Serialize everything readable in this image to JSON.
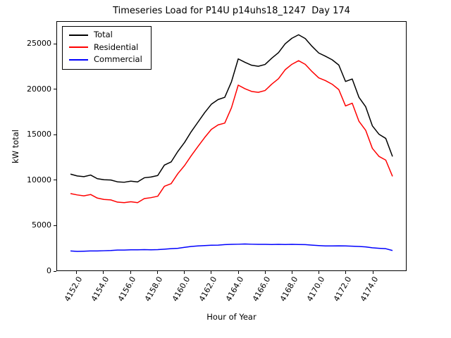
{
  "chart_data": {
    "type": "line",
    "title": "Timeseries Load for P14U p14uhs18_1247  Day 174",
    "xlabel": "Hour of Year",
    "ylabel": "kW total",
    "xlim": [
      4150.5,
      4176.5
    ],
    "ylim": [
      0,
      27500
    ],
    "grid": false,
    "legend_position": "upper left",
    "xticks": [
      4152,
      4154,
      4156,
      4158,
      4160,
      4162,
      4164,
      4166,
      4168,
      4170,
      4172,
      4174
    ],
    "xtick_labels": [
      "4152.0",
      "4154.0",
      "4156.0",
      "4158.0",
      "4160.0",
      "4162.0",
      "4164.0",
      "4166.0",
      "4168.0",
      "4170.0",
      "4172.0",
      "4174.0"
    ],
    "yticks": [
      0,
      5000,
      10000,
      15000,
      20000,
      25000
    ],
    "ytick_labels": [
      "0",
      "5000",
      "10000",
      "15000",
      "20000",
      "25000"
    ],
    "x": [
      4151.5,
      4152.0,
      4152.5,
      4153.0,
      4153.5,
      4154.0,
      4154.5,
      4155.0,
      4155.5,
      4156.0,
      4156.5,
      4157.0,
      4157.5,
      4158.0,
      4158.5,
      4159.0,
      4159.5,
      4160.0,
      4160.5,
      4161.0,
      4161.5,
      4162.0,
      4162.5,
      4163.0,
      4163.5,
      4164.0,
      4164.5,
      4165.0,
      4165.5,
      4166.0,
      4166.5,
      4167.0,
      4167.5,
      4168.0,
      4168.5,
      4169.0,
      4169.5,
      4170.0,
      4170.5,
      4171.0,
      4171.5,
      4172.0,
      4172.5,
      4173.0,
      4173.5,
      4174.0,
      4174.5,
      4175.0,
      4175.5
    ],
    "series": [
      {
        "name": "Total",
        "color": "#000000",
        "values": [
          10650,
          10450,
          10370,
          10550,
          10150,
          10030,
          10000,
          9800,
          9750,
          9880,
          9780,
          10250,
          10330,
          10500,
          11650,
          12000,
          13150,
          14150,
          15350,
          16400,
          17450,
          18380,
          18900,
          19150,
          20880,
          23400,
          23020,
          22700,
          22580,
          22780,
          23470,
          24080,
          25070,
          25680,
          26070,
          25650,
          24800,
          24050,
          23700,
          23300,
          22720,
          20900,
          21180,
          19150,
          18100,
          16000,
          15050,
          14600,
          12600
        ]
      },
      {
        "name": "Residential",
        "color": "#ff0000",
        "values": [
          8500,
          8350,
          8250,
          8400,
          8000,
          7850,
          7800,
          7550,
          7500,
          7600,
          7500,
          7950,
          8050,
          8200,
          9300,
          9600,
          10700,
          11600,
          12700,
          13700,
          14700,
          15600,
          16100,
          16300,
          18000,
          20500,
          20100,
          19800,
          19700,
          19900,
          20600,
          21200,
          22200,
          22800,
          23200,
          22800,
          22000,
          21300,
          21000,
          20600,
          20000,
          18200,
          18500,
          16500,
          15500,
          13500,
          12600,
          12200,
          10400
        ]
      },
      {
        "name": "Commercial",
        "color": "#0000ff",
        "values": [
          2150,
          2100,
          2120,
          2150,
          2150,
          2180,
          2200,
          2250,
          2250,
          2280,
          2280,
          2300,
          2280,
          2300,
          2350,
          2400,
          2450,
          2550,
          2650,
          2700,
          2750,
          2780,
          2800,
          2850,
          2880,
          2900,
          2920,
          2900,
          2880,
          2880,
          2870,
          2880,
          2870,
          2880,
          2870,
          2850,
          2800,
          2750,
          2700,
          2700,
          2720,
          2700,
          2680,
          2650,
          2600,
          2500,
          2450,
          2400,
          2200
        ]
      }
    ]
  }
}
